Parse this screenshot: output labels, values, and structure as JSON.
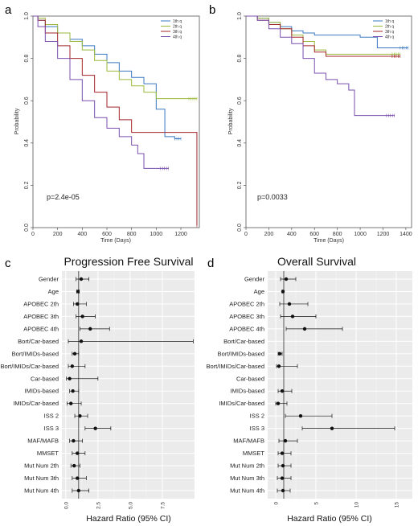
{
  "chart_data": [
    {
      "panel": "a",
      "type": "line",
      "ylabel": "Probability",
      "xlabel": "Time (Days)",
      "xlim": [
        0,
        1350
      ],
      "ylim": [
        0,
        1
      ],
      "xticks": [
        "0",
        "200",
        "400",
        "600",
        "800",
        "1000",
        "1200"
      ],
      "yticks": [
        "0.0",
        "0.2",
        "0.4",
        "0.6",
        "0.8",
        "1.0"
      ],
      "annotation": "p=2.4e-05",
      "legend_position": "top-right",
      "series": [
        {
          "name": "1th q",
          "color": "#3a78c2",
          "x": [
            0,
            40,
            100,
            200,
            300,
            400,
            500,
            600,
            700,
            800,
            900,
            1000,
            1070,
            1150,
            1200
          ],
          "y": [
            1.0,
            0.98,
            0.95,
            0.92,
            0.89,
            0.86,
            0.82,
            0.78,
            0.74,
            0.71,
            0.68,
            0.56,
            0.43,
            0.42,
            0.42
          ]
        },
        {
          "name": "2th q",
          "color": "#9ab93a",
          "x": [
            0,
            40,
            100,
            200,
            300,
            400,
            500,
            600,
            700,
            800,
            900,
            1000,
            1100,
            1200,
            1330
          ],
          "y": [
            1.0,
            0.99,
            0.96,
            0.92,
            0.88,
            0.84,
            0.79,
            0.74,
            0.7,
            0.67,
            0.64,
            0.61,
            0.61,
            0.61,
            0.61
          ]
        },
        {
          "name": "3th q",
          "color": "#a3262a",
          "x": [
            0,
            40,
            100,
            200,
            300,
            400,
            500,
            600,
            700,
            800,
            900,
            1000,
            1100,
            1200,
            1320,
            1330
          ],
          "y": [
            1.0,
            0.98,
            0.92,
            0.86,
            0.8,
            0.72,
            0.64,
            0.57,
            0.51,
            0.45,
            0.45,
            0.45,
            0.45,
            0.45,
            0.45,
            0.01
          ]
        },
        {
          "name": "4th q",
          "color": "#7a4fae",
          "x": [
            0,
            40,
            100,
            200,
            300,
            400,
            500,
            600,
            700,
            800,
            850,
            900,
            1000,
            1100
          ],
          "y": [
            1.0,
            0.95,
            0.88,
            0.8,
            0.7,
            0.6,
            0.52,
            0.47,
            0.43,
            0.39,
            0.35,
            0.28,
            0.28,
            0.28
          ]
        }
      ]
    },
    {
      "panel": "b",
      "type": "line",
      "ylabel": "Probability",
      "xlabel": "Time (Days)",
      "xlim": [
        0,
        1450
      ],
      "ylim": [
        0,
        1
      ],
      "xticks": [
        "0",
        "200",
        "400",
        "600",
        "800",
        "1000",
        "1200",
        "1400"
      ],
      "yticks": [
        "0.0",
        "0.2",
        "0.4",
        "0.6",
        "0.8",
        "1.0"
      ],
      "annotation": "p=0.0033",
      "legend_position": "top-right",
      "series": [
        {
          "name": "1th q",
          "color": "#3a78c2",
          "x": [
            0,
            100,
            200,
            300,
            400,
            500,
            600,
            700,
            800,
            900,
            1000,
            1100,
            1150,
            1300,
            1420
          ],
          "y": [
            1.0,
            0.99,
            0.97,
            0.95,
            0.93,
            0.92,
            0.91,
            0.91,
            0.91,
            0.91,
            0.9,
            0.9,
            0.85,
            0.85,
            0.85
          ]
        },
        {
          "name": "2th q",
          "color": "#9ab93a",
          "x": [
            0,
            100,
            200,
            300,
            400,
            500,
            600,
            700,
            800,
            900,
            1000,
            1200,
            1350
          ],
          "y": [
            1.0,
            0.99,
            0.97,
            0.94,
            0.91,
            0.88,
            0.84,
            0.82,
            0.82,
            0.82,
            0.82,
            0.82,
            0.82
          ]
        },
        {
          "name": "3th q",
          "color": "#a3262a",
          "x": [
            0,
            100,
            200,
            300,
            400,
            500,
            600,
            700,
            800,
            900,
            1000,
            1200,
            1350
          ],
          "y": [
            1.0,
            0.98,
            0.96,
            0.94,
            0.9,
            0.86,
            0.83,
            0.81,
            0.81,
            0.81,
            0.81,
            0.81,
            0.81
          ]
        },
        {
          "name": "4th q",
          "color": "#7a4fae",
          "x": [
            0,
            100,
            200,
            300,
            400,
            500,
            600,
            700,
            800,
            900,
            950,
            1000,
            1100,
            1300
          ],
          "y": [
            1.0,
            0.98,
            0.94,
            0.9,
            0.87,
            0.8,
            0.73,
            0.7,
            0.68,
            0.65,
            0.53,
            0.53,
            0.53,
            0.53
          ]
        }
      ]
    },
    {
      "panel": "c",
      "type": "scatter",
      "title": "Progression Free Survival",
      "xlabel": "Hazard Ratio (95% CI)",
      "xlim": [
        -0.3,
        10
      ],
      "xticks": [
        0,
        2.5,
        5,
        7.5
      ],
      "xtick_labels": [
        "0.0",
        "2.5",
        "5.0",
        "7.5"
      ],
      "reference_line": 1,
      "grid": true,
      "categories": [
        "Gender",
        "Age",
        "APOBEC 2th",
        "APOBEC 3th",
        "APOBEC 4th",
        "Bort/Car-based",
        "Bort/IMIDs-based",
        "Bort/IMIDs/Car-based",
        "Car-based",
        "IMIDs-based",
        "IMIDs/Car-based",
        "ISS 2",
        "ISS 3",
        "MAF/MAFB",
        "MMSET",
        "Mut Num 2th",
        "Mut Num 3th",
        "Mut Num 4th"
      ],
      "hr": [
        1.2,
        0.95,
        0.9,
        1.3,
        1.9,
        1.2,
        0.7,
        0.5,
        0.3,
        0.55,
        0.4,
        1.1,
        2.3,
        0.6,
        0.9,
        0.65,
        0.9,
        1.0
      ],
      "lo": [
        0.8,
        0.85,
        0.6,
        0.8,
        1.1,
        0.2,
        0.5,
        0.2,
        0.05,
        0.3,
        0.1,
        0.7,
        1.5,
        0.3,
        0.5,
        0.4,
        0.5,
        0.5
      ],
      "hi": [
        1.8,
        1.05,
        1.6,
        2.3,
        3.4,
        9.9,
        1.0,
        1.5,
        2.5,
        1.0,
        1.2,
        1.7,
        3.5,
        1.3,
        1.5,
        1.1,
        1.6,
        1.8
      ]
    },
    {
      "panel": "d",
      "type": "scatter",
      "title": "Overall Survival",
      "xlabel": "Hazard Ratio (95% CI)",
      "xlim": [
        -1,
        17
      ],
      "xticks": [
        0,
        5,
        10,
        15
      ],
      "xtick_labels": [
        "0",
        "5",
        "10",
        "15"
      ],
      "reference_line": 1,
      "grid": true,
      "categories": [
        "Gender",
        "Age",
        "APOBEC 2th",
        "APOBEC 3th",
        "APOBEC 4th",
        "Bort/Car-based",
        "Bort/IMIDs-based",
        "Bort/IMIDs/Car-based",
        "Car-based",
        "IMIDs-based",
        "IMIDs/Car-based",
        "ISS 2",
        "ISS 3",
        "MAF/MAFB",
        "MMSET",
        "Mut Num 2th",
        "Mut Num 3th",
        "Mut Num 4th"
      ],
      "hr": [
        1.3,
        0.9,
        1.7,
        2.1,
        3.6,
        null,
        0.5,
        0.4,
        null,
        0.8,
        0.3,
        3.1,
        7.0,
        1.2,
        0.8,
        0.9,
        0.8,
        0.9
      ],
      "lo": [
        0.6,
        0.8,
        0.5,
        0.6,
        1.3,
        null,
        0.3,
        0.1,
        null,
        0.3,
        0.0,
        1.2,
        3.3,
        0.4,
        0.3,
        0.3,
        0.2,
        0.2
      ],
      "hi": [
        2.5,
        1.0,
        4.0,
        5.0,
        8.3,
        null,
        0.8,
        2.7,
        null,
        2.0,
        1.4,
        7.0,
        14.8,
        2.7,
        1.9,
        1.9,
        1.9,
        1.8
      ]
    }
  ]
}
